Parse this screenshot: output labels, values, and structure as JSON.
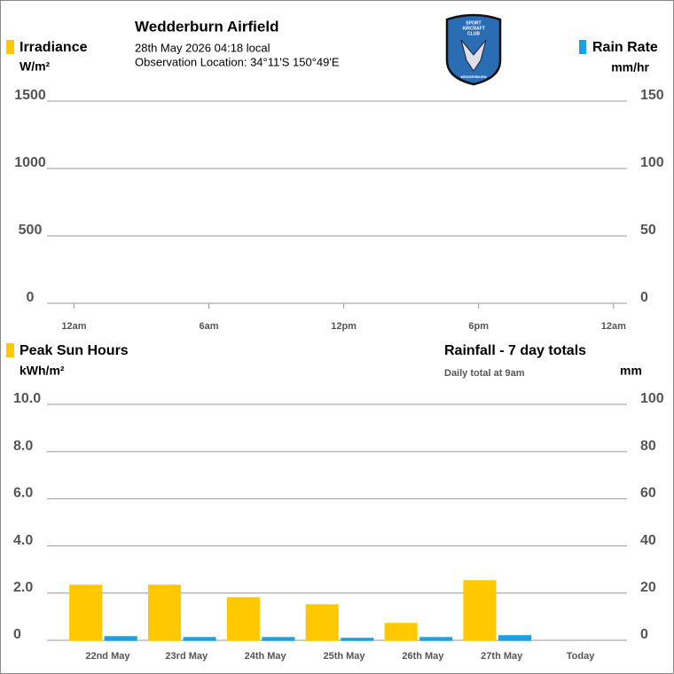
{
  "header": {
    "title": "Wedderburn Airfield",
    "datetime": "28th May 2026  04:18 local",
    "location": "Observation Location: 34°11'S 150°49'E",
    "logo": [
      "SPORT",
      "AIRCRAFT",
      "CLUB",
      "WEDDERBURN"
    ]
  },
  "chart_data": [
    {
      "type": "bar",
      "y_label": "W/m²",
      "y2_label": "mm/hr",
      "x": [
        0.15,
        1.4,
        2.5,
        3.6
      ],
      "xlim": [
        -1.2,
        24.6
      ],
      "xticks": [
        {
          "value": 0,
          "label": "12am"
        },
        {
          "value": 6,
          "label": "6am"
        },
        {
          "value": 12,
          "label": "12pm"
        },
        {
          "value": 18,
          "label": "6pm"
        },
        {
          "value": 24,
          "label": "12am"
        }
      ],
      "ylim": [
        0,
        1500
      ],
      "yticks": [
        0,
        500,
        1000,
        1500
      ],
      "y2lim": [
        0,
        150
      ],
      "y2ticks": [
        0,
        50,
        100,
        150
      ],
      "grid": true,
      "series": [
        {
          "name": "Irradiance",
          "color": "#ffc800",
          "values": [
            null,
            null,
            null,
            null
          ]
        },
        {
          "name": "Rain Rate",
          "color": "#1ba1e2",
          "axis": "y2",
          "values": [
            0,
            0,
            0,
            0
          ]
        }
      ]
    },
    {
      "type": "bar",
      "y_label": "kWh/m²",
      "y2_label": "mm",
      "subtitle": "Daily total at 9am",
      "categories": [
        "22nd May",
        "23rd May",
        "24th May",
        "25th May",
        "26th May",
        "27th May",
        "Today"
      ],
      "ylim": [
        0,
        10
      ],
      "yticks": [
        0,
        {
          "value": 2,
          "label": "2.0"
        },
        {
          "value": 4,
          "label": "4.0"
        },
        {
          "value": 6,
          "label": "6.0"
        },
        {
          "value": 8,
          "label": "8.0"
        },
        {
          "value": 10,
          "label": "10.0"
        }
      ],
      "y2lim": [
        0,
        100
      ],
      "y2ticks": [
        0,
        20,
        40,
        60,
        80,
        100
      ],
      "grid": true,
      "series": [
        {
          "name": "Peak Sun Hours",
          "color": "#ffc800",
          "values": [
            2.33,
            2.33,
            1.8,
            1.5,
            0.71,
            2.52,
            null
          ]
        },
        {
          "name": "Rainfall - 7 day totals",
          "color": "#1ba1e2",
          "axis": "y2",
          "values": [
            1.5,
            1.1,
            1.1,
            0.8,
            1.1,
            1.9,
            null
          ]
        }
      ]
    }
  ]
}
